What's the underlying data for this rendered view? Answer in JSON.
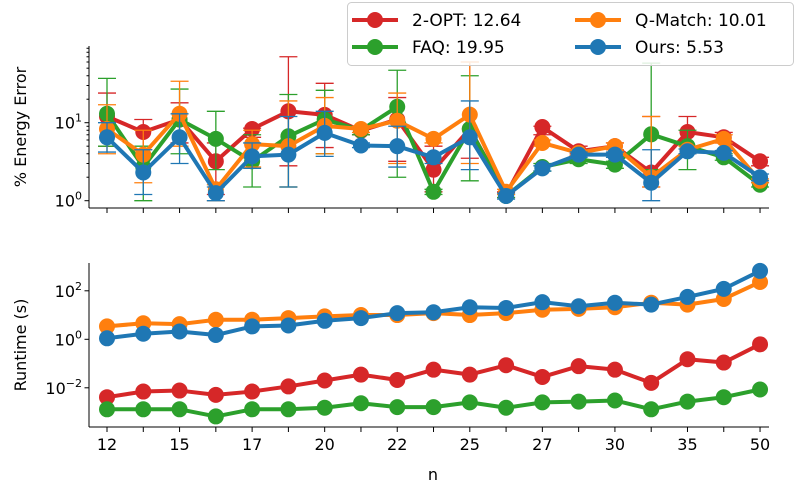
{
  "legend": {
    "placement": "top-right",
    "entries": [
      {
        "label": "2-OPT: 12.64",
        "color": "#d62728"
      },
      {
        "label": "Q-Match: 10.01",
        "color": "#ff7f0e"
      },
      {
        "label": "FAQ: 19.95",
        "color": "#2ca02c"
      },
      {
        "label": "Ours: 5.53",
        "color": "#1f77b4"
      }
    ]
  },
  "chart_data": [
    {
      "type": "line",
      "ylabel": "% Energy Error",
      "xlabel": "",
      "yscale": "log",
      "ylim": [
        0.8,
        95
      ],
      "yticks": [
        {
          "value": 1,
          "label": "10^0"
        },
        {
          "value": 10,
          "label": "10^1"
        }
      ],
      "xtick_labels": [
        "12",
        "",
        "15",
        "",
        "17",
        "",
        "20",
        "",
        "22",
        "",
        "25",
        "",
        "27",
        "",
        "30",
        "",
        "35",
        "",
        "50"
      ],
      "series": [
        {
          "name": "2-OPT",
          "color": "#d62728",
          "values": [
            12,
            7.6,
            11,
            3.2,
            8.3,
            14,
            12.6,
            7.9,
            11,
            2.5,
            8.3,
            1.2,
            8.8,
            4.3,
            5.0,
            2.3,
            7.6,
            6.5,
            3.2
          ],
          "err_low": [
            5,
            4.5,
            5.5,
            1.2,
            6.5,
            2.8,
            4.8,
            7,
            3.2,
            1.3,
            3.5,
            1.1,
            7,
            4,
            4.5,
            1.5,
            4,
            5.5,
            2.8
          ],
          "err_high": [
            24,
            11,
            18,
            5.5,
            8.5,
            70,
            32,
            9,
            21,
            5,
            60,
            1.3,
            9,
            5,
            5.5,
            12,
            12,
            7.5,
            3.6
          ]
        },
        {
          "name": "FAQ",
          "color": "#2ca02c",
          "values": [
            13,
            2.7,
            11,
            6.2,
            3.2,
            6.7,
            11,
            8,
            16,
            1.3,
            8.3,
            1.15,
            2.7,
            3.4,
            2.9,
            7.1,
            5.0,
            3.6,
            1.6
          ],
          "err_low": [
            5,
            1,
            4,
            2.5,
            1.5,
            1.5,
            4,
            7,
            2,
            1.2,
            1.8,
            1.1,
            2.4,
            3,
            2.6,
            2.5,
            2.5,
            3.3,
            1.5
          ],
          "err_high": [
            37,
            5,
            27,
            14,
            7,
            23,
            26,
            9,
            47,
            1.4,
            40,
            1.2,
            3,
            3.8,
            3.2,
            58,
            8,
            4,
            1.7
          ]
        },
        {
          "name": "Q-Match",
          "color": "#ff7f0e",
          "values": [
            8.3,
            3.9,
            13,
            1.4,
            5.3,
            5.0,
            9.1,
            8.3,
            10.6,
            6.2,
            12.7,
            1.3,
            5.5,
            4.1,
            5.0,
            2.0,
            4.5,
            6.2,
            1.8
          ],
          "err_low": [
            4,
            1.7,
            5,
            1,
            2.7,
            1.5,
            4,
            7.5,
            3,
            5.5,
            3,
            1.2,
            5,
            3.8,
            4.5,
            1.5,
            4,
            5.5,
            1.7
          ],
          "err_high": [
            17,
            8,
            34,
            1.6,
            8,
            19,
            21,
            9,
            24,
            7,
            60,
            1.4,
            6,
            4.4,
            5.5,
            12,
            5,
            7,
            1.9
          ]
        },
        {
          "name": "Ours",
          "color": "#1f77b4",
          "values": [
            6.5,
            2.3,
            6.5,
            1.25,
            3.7,
            3.9,
            7.4,
            5.1,
            5.0,
            3.6,
            6.5,
            1.15,
            2.6,
            3.9,
            3.9,
            1.7,
            4.3,
            4.1,
            2.0
          ],
          "err_low": [
            4.2,
            1.2,
            3,
            1,
            2.6,
            1.5,
            3.7,
            4.8,
            2.7,
            3,
            2.5,
            1.05,
            2.4,
            3.6,
            3.6,
            1,
            4,
            3.8,
            1.8
          ],
          "err_high": [
            10,
            4.5,
            13,
            1.5,
            5.5,
            12,
            14,
            5.5,
            9,
            4,
            19,
            1.25,
            2.8,
            4.2,
            4.2,
            4.5,
            4.6,
            4.4,
            2.2
          ]
        }
      ]
    },
    {
      "type": "line",
      "ylabel": "Runtime (s)",
      "xlabel": "n",
      "yscale": "log",
      "ylim": [
        0.00023,
        1400
      ],
      "yticks": [
        {
          "value": 0.01,
          "label": "10^-2"
        },
        {
          "value": 1,
          "label": "10^0"
        },
        {
          "value": 100,
          "label": "10^2"
        }
      ],
      "xtick_labels": [
        "12",
        "",
        "15",
        "",
        "17",
        "",
        "20",
        "",
        "22",
        "",
        "25",
        "",
        "27",
        "",
        "30",
        "",
        "35",
        "",
        "50"
      ],
      "series": [
        {
          "name": "2-OPT",
          "color": "#d62728",
          "values": [
            0.0041,
            0.007,
            0.0077,
            0.0051,
            0.007,
            0.0114,
            0.02,
            0.035,
            0.021,
            0.056,
            0.035,
            0.085,
            0.028,
            0.078,
            0.056,
            0.016,
            0.15,
            0.11,
            0.62
          ]
        },
        {
          "name": "FAQ",
          "color": "#2ca02c",
          "values": [
            0.0013,
            0.0013,
            0.0013,
            0.00066,
            0.0013,
            0.0013,
            0.0015,
            0.0023,
            0.0016,
            0.0016,
            0.0025,
            0.0015,
            0.0025,
            0.0027,
            0.003,
            0.0013,
            0.0027,
            0.0041,
            0.0085
          ]
        },
        {
          "name": "Q-Match",
          "color": "#ff7f0e",
          "values": [
            3.4,
            4.6,
            4.2,
            6.4,
            6.4,
            7.5,
            8.8,
            10,
            10,
            12,
            10,
            12,
            16.6,
            18,
            21,
            32,
            27,
            46,
            230
          ]
        },
        {
          "name": "Ours",
          "color": "#1f77b4",
          "values": [
            1.1,
            1.7,
            2.1,
            1.5,
            3.4,
            3.7,
            5.8,
            7.5,
            12,
            13,
            21,
            19.6,
            34,
            23,
            32,
            27,
            56,
            120,
            660
          ]
        }
      ]
    }
  ]
}
